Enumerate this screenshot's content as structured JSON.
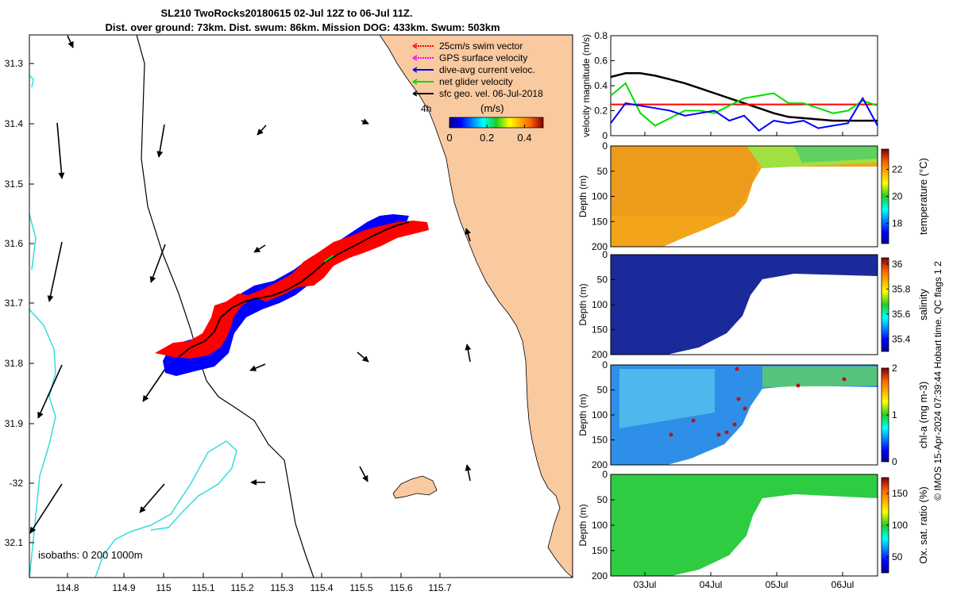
{
  "title_line1": "SL210 TwoRocks20180615 02-Jul 12Z to 06-Jul 11Z.",
  "title_line2": "Dist. over ground: 73km. Dist. swum: 86km. Mission DOG: 433km. Swum: 503km",
  "map": {
    "lon_range": [
      114.73,
      115.81
    ],
    "lat_range": [
      -32.15,
      -31.26
    ],
    "lon_ticks": [
      "114.8",
      "114.9",
      "115",
      "115.1",
      "115.2",
      "115.3",
      "115.4",
      "115.5",
      "115.6",
      "115.7"
    ],
    "lat_ticks": [
      "31.3",
      "31.4",
      "31.5",
      "31.6",
      "31.7",
      "31.8",
      "31.9",
      "-32",
      "32.1"
    ],
    "isobaths_label": "isobaths: 0   200  1000m",
    "legend": [
      {
        "label": "25cm/s swim vector",
        "color": "#ff0000"
      },
      {
        "label": "GPS surface velocity",
        "color": "#ff00ff"
      },
      {
        "label": "dive-avg current veloc.",
        "color": "#0000ff"
      },
      {
        "label": "net glider velocity",
        "color": "#00dd00"
      },
      {
        "label": "sfc geo. vel. 06-Jul-2018",
        "color": "#000000"
      }
    ],
    "colorbar": {
      "label": "(m/s)",
      "ticks": [
        "0",
        "0.2",
        "0.4"
      ],
      "range": [
        0,
        0.5
      ]
    },
    "small_label": "4h",
    "colors": {
      "land": "#f9c9a0",
      "isobath_200": "#000000",
      "isobath_1000": "#33dddd",
      "dive_avg_band": "#0000ff",
      "swim_band": "#ff0000",
      "track": "#000000"
    }
  },
  "time_axis": {
    "ticks": [
      "03Jul",
      "04Jul",
      "05Jul",
      "06Jul"
    ]
  },
  "velocity_panel": {
    "ylabel": "velocity magnitude (m/s)",
    "yticks": [
      "0",
      "0.2",
      "0.4",
      "0.6",
      "0.8"
    ],
    "ylim": [
      0,
      0.8
    ],
    "series": [
      {
        "color": "#000000",
        "values": [
          0.47,
          0.5,
          0.5,
          0.48,
          0.45,
          0.42,
          0.38,
          0.34,
          0.3,
          0.26,
          0.22,
          0.18,
          0.15,
          0.14,
          0.13,
          0.12,
          0.12,
          0.12,
          0.12
        ]
      },
      {
        "color": "#ff0000",
        "values": [
          0.25,
          0.25,
          0.25,
          0.25,
          0.25,
          0.25,
          0.25,
          0.25,
          0.25,
          0.25,
          0.25,
          0.25,
          0.25,
          0.25,
          0.25,
          0.25,
          0.25,
          0.25,
          0.25
        ]
      },
      {
        "color": "#00dd00",
        "values": [
          0.32,
          0.42,
          0.18,
          0.08,
          0.14,
          0.2,
          0.2,
          0.18,
          0.24,
          0.3,
          0.32,
          0.34,
          0.26,
          0.26,
          0.22,
          0.18,
          0.2,
          0.28,
          0.24
        ]
      },
      {
        "color": "#0000ff",
        "values": [
          0.1,
          0.26,
          0.24,
          0.22,
          0.2,
          0.16,
          0.18,
          0.2,
          0.12,
          0.16,
          0.04,
          0.12,
          0.1,
          0.12,
          0.06,
          0.08,
          0.1,
          0.3,
          0.08
        ]
      }
    ]
  },
  "depth_panels": [
    {
      "name": "temperature",
      "ylabel": "Depth (m)",
      "yticks": [
        "0",
        "50",
        "100",
        "150",
        "200"
      ],
      "cbar_label": "temperature (°C)",
      "cbar_ticks": [
        "18",
        "20",
        "22"
      ],
      "cbar_range": [
        16.5,
        23.5
      ]
    },
    {
      "name": "salinity",
      "ylabel": "Depth (m)",
      "yticks": [
        "0",
        "50",
        "100",
        "150",
        "200"
      ],
      "cbar_label": "salinity",
      "cbar_ticks": [
        "35.4",
        "35.6",
        "35.8",
        "36"
      ],
      "cbar_range": [
        35.3,
        36.05
      ]
    },
    {
      "name": "chla",
      "ylabel": "Depth (m)",
      "yticks": [
        "0",
        "50",
        "100",
        "150",
        "200"
      ],
      "cbar_label": "chl-a (mg m-3)",
      "cbar_ticks": [
        "0",
        "1",
        "2"
      ],
      "cbar_range": [
        0,
        2
      ]
    },
    {
      "name": "oxygen",
      "ylabel": "Depth (m)",
      "yticks": [
        "0",
        "50",
        "100",
        "150",
        "200"
      ],
      "cbar_label": "Ox. sat. ratio (%)",
      "cbar_ticks": [
        "50",
        "100",
        "150"
      ],
      "cbar_range": [
        25,
        175
      ]
    }
  ],
  "footer_text": "© IMOS 15-Apr-2024 07:39:44 Hobart time. QC flags 1  2"
}
